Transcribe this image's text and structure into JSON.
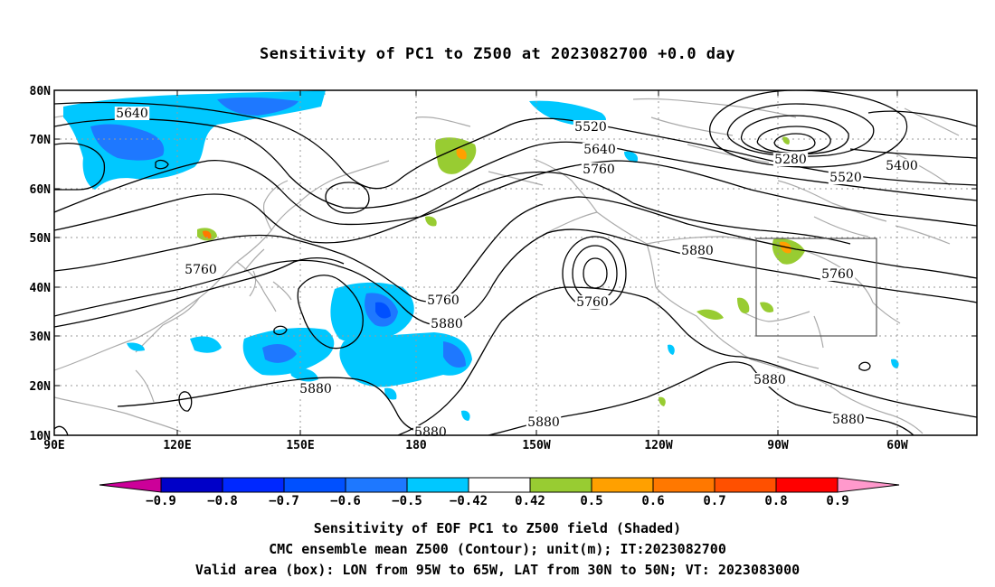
{
  "title": "Sensitivity of PC1 to Z500 at 2023082700 +0.0 day",
  "map": {
    "lon_labels": [
      "90E",
      "120E",
      "150E",
      "180",
      "150W",
      "120W",
      "90W",
      "60W"
    ],
    "lat_labels": [
      "10N",
      "20N",
      "30N",
      "40N",
      "50N",
      "60N",
      "70N",
      "80N"
    ],
    "valid_box": {
      "lon_from": "95W",
      "lon_to": "65W",
      "lat_from": "30N",
      "lat_to": "50N"
    },
    "contour_labels": [
      "5640",
      "5520",
      "5640",
      "5760",
      "5280",
      "5400",
      "5520",
      "5760",
      "5880",
      "5760",
      "5760",
      "5880",
      "5880",
      "5880",
      "5880",
      "5880",
      "5880",
      "5760"
    ],
    "colors": {
      "contour": "#000000",
      "coast": "#aaaaaa",
      "grid": "#9a9a9a",
      "box": "#555555"
    }
  },
  "colorbar": {
    "labels": [
      "-0.9",
      "-0.8",
      "-0.7",
      "-0.6",
      "-0.5",
      "-0.42",
      "0.42",
      "0.5",
      "0.6",
      "0.7",
      "0.8",
      "0.9"
    ],
    "colors": [
      "#0000c8",
      "#0028ff",
      "#0050ff",
      "#1e78ff",
      "#00c8ff",
      "#ffffff",
      "#98cc32",
      "#ffa000",
      "#ff7800",
      "#ff5000",
      "#ff0000"
    ],
    "low_end_color": "#cc0099",
    "high_end_color": "#ff99cc"
  },
  "footer": {
    "line1": "Sensitivity of EOF PC1 to Z500 field (Shaded)",
    "line2": "CMC ensemble mean Z500 (Contour); unit(m); IT:2023082700",
    "line3": "Valid area (box): LON from 95W to 65W, LAT from 30N to 50N; VT: 2023083000"
  }
}
